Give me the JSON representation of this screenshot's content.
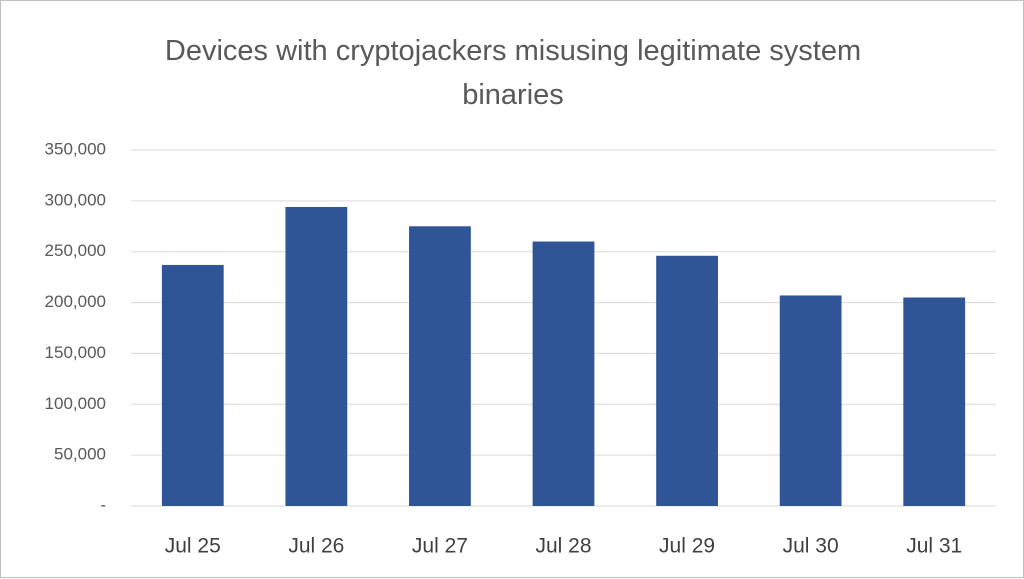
{
  "chart_data": {
    "type": "bar",
    "title": "Devices with cryptojackers misusing legitimate system binaries",
    "categories": [
      "Jul 25",
      "Jul 26",
      "Jul 27",
      "Jul 28",
      "Jul 29",
      "Jul 30",
      "Jul 31"
    ],
    "values": [
      237000,
      294000,
      275000,
      260000,
      246000,
      207000,
      205000
    ],
    "color": "#2f5597",
    "ylim": [
      0,
      350000
    ],
    "yticks": [
      {
        "value": 0,
        "label": "-"
      },
      {
        "value": 50000,
        "label": "50,000"
      },
      {
        "value": 100000,
        "label": "100,000"
      },
      {
        "value": 150000,
        "label": "150,000"
      },
      {
        "value": 200000,
        "label": "200,000"
      },
      {
        "value": 250000,
        "label": "250,000"
      },
      {
        "value": 300000,
        "label": "300,000"
      },
      {
        "value": 350000,
        "label": "350,000"
      }
    ],
    "grid": true
  }
}
